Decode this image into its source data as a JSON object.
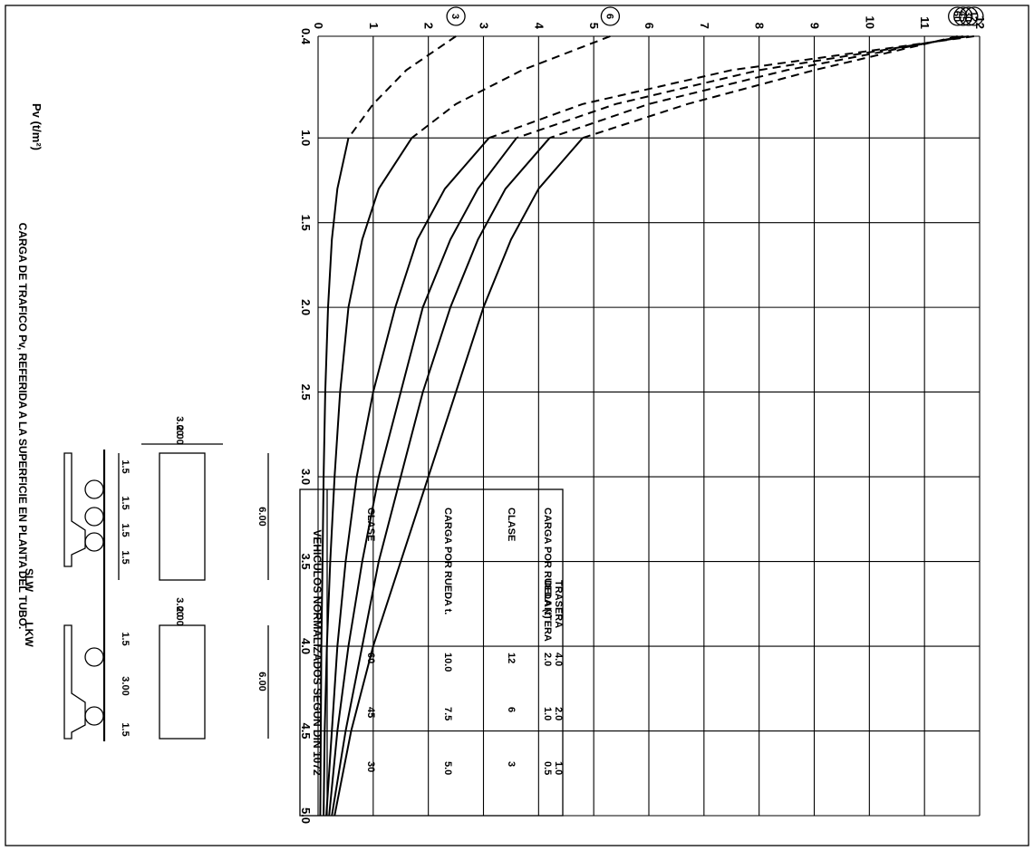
{
  "vehicles": {
    "slw_label": "SLW",
    "lkw_label": "LKW",
    "slw_axle_dims": [
      "1.5",
      "1.5",
      "1.5",
      "1.5"
    ],
    "lkw_axle_dims": [
      "1.5",
      "3.00",
      "1.5"
    ],
    "slw_plan_length": "6.00",
    "lkw_plan_length": "6.00",
    "slw_widths": [
      "2.00",
      "3.00"
    ],
    "lkw_widths": [
      "2.00",
      "3.00"
    ]
  },
  "table": {
    "title": "VEHICULOS NORMALIZADOS SEGUN DIN 1072",
    "col_clase": "CLASE",
    "col_carga_rueda": "CARGA POR RUEDA t.",
    "col_carga_por_rueda": "CARGA POR RUEDA (t)",
    "col_delantera": "DELANTERA",
    "col_trasera": "TRASERA",
    "slw_rows": [
      {
        "clase": "60",
        "carga": "10.0"
      },
      {
        "clase": "45",
        "carga": "7.5"
      },
      {
        "clase": "30",
        "carga": "5.0"
      }
    ],
    "lkw_rows": [
      {
        "clase": "12",
        "delantera": "2.0",
        "trasera": "4.0"
      },
      {
        "clase": "6",
        "delantera": "1.0",
        "trasera": "2.0"
      },
      {
        "clase": "3",
        "delantera": "0.5",
        "trasera": "1.0"
      }
    ]
  },
  "chart_data": {
    "type": "line",
    "ylabel": "CARGA DE TRAFICO Pv, REFERIDA A LA SUPERFICIE EN PLANTA DEL TUBO.",
    "ytitle": "Pv (t/m²)",
    "ylim": [
      0,
      12
    ],
    "xlim": [
      0.4,
      5.0
    ],
    "x_ticks": [
      "0.4",
      "1.0",
      "1.5",
      "2.0",
      "2.5",
      "3.0",
      "3.5",
      "4.0",
      "4.5",
      "5.0"
    ],
    "y_ticks": [
      "0",
      "1",
      "2",
      "3",
      "4",
      "5",
      "6",
      "7",
      "8",
      "9",
      "10",
      "11",
      "12"
    ],
    "grid": true,
    "series": [
      {
        "name": "60",
        "x": [
          0.4,
          0.6,
          0.8,
          1.0,
          1.3,
          1.6,
          2.0,
          2.5,
          3.0,
          3.5,
          4.0,
          4.5,
          5.0
        ],
        "values": [
          11.6,
          9.0,
          6.7,
          4.8,
          4.0,
          3.5,
          3.0,
          2.5,
          2.0,
          1.5,
          1.0,
          0.6,
          0.3
        ]
      },
      {
        "name": "45",
        "x": [
          0.4,
          0.6,
          0.8,
          1.0,
          1.3,
          1.6,
          2.0,
          2.5,
          3.0,
          3.5,
          4.0,
          4.5,
          5.0
        ],
        "values": [
          11.7,
          8.5,
          6.0,
          4.2,
          3.4,
          2.9,
          2.4,
          1.9,
          1.5,
          1.1,
          0.8,
          0.5,
          0.25
        ]
      },
      {
        "name": "30",
        "x": [
          0.4,
          0.6,
          0.8,
          1.0,
          1.3,
          1.6,
          2.0,
          2.5,
          3.0,
          3.5,
          4.0,
          4.5,
          5.0
        ],
        "values": [
          11.8,
          8.0,
          5.4,
          3.6,
          2.9,
          2.4,
          1.9,
          1.5,
          1.1,
          0.8,
          0.55,
          0.35,
          0.2
        ]
      },
      {
        "name": "12",
        "x": [
          0.4,
          0.6,
          0.8,
          1.0,
          1.3,
          1.6,
          2.0,
          2.5,
          3.0,
          3.5,
          4.0,
          4.5,
          5.0
        ],
        "values": [
          11.9,
          7.5,
          4.8,
          3.1,
          2.3,
          1.8,
          1.4,
          1.0,
          0.7,
          0.5,
          0.35,
          0.25,
          0.15
        ]
      },
      {
        "name": "6",
        "x": [
          0.4,
          0.6,
          0.8,
          1.0,
          1.3,
          1.6,
          2.0,
          2.5,
          3.0,
          3.5,
          4.0,
          4.5,
          5.0
        ],
        "values": [
          5.3,
          3.7,
          2.5,
          1.7,
          1.1,
          0.8,
          0.55,
          0.4,
          0.3,
          0.22,
          0.16,
          0.12,
          0.1
        ]
      },
      {
        "name": "3",
        "x": [
          0.4,
          0.6,
          0.8,
          1.0,
          1.3,
          1.6,
          2.0,
          2.5,
          3.0,
          3.5,
          4.0,
          4.5,
          5.0
        ],
        "values": [
          2.5,
          1.6,
          1.0,
          0.55,
          0.35,
          0.25,
          0.18,
          0.13,
          0.1,
          0.08,
          0.06,
          0.05,
          0.04
        ]
      }
    ]
  }
}
